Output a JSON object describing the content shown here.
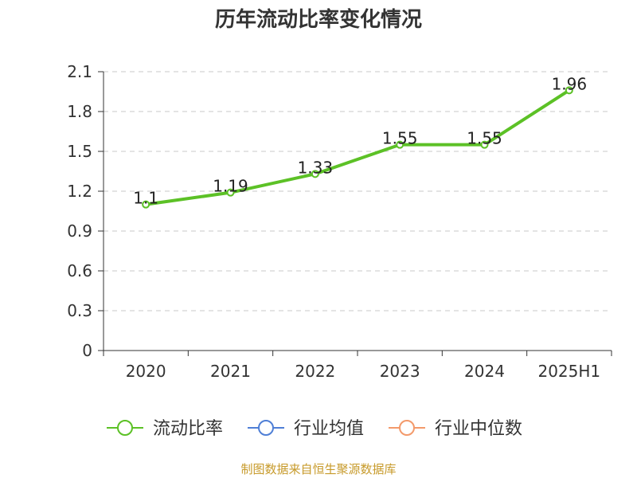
{
  "chart_data": {
    "type": "line",
    "title": "历年流动比率变化情况",
    "categories": [
      "2020",
      "2021",
      "2022",
      "2023",
      "2024",
      "2025H1"
    ],
    "series": [
      {
        "name": "流动比率",
        "values": [
          1.1,
          1.19,
          1.33,
          1.55,
          1.55,
          1.96
        ],
        "color": "#5cc126",
        "data_labels": [
          "1.1",
          "1.19",
          "1.33",
          "1.55",
          "1.55",
          "1.96"
        ]
      }
    ],
    "legend": [
      {
        "name": "流动比率",
        "color": "#5cc126"
      },
      {
        "name": "行业均值",
        "color": "#4f7fd6"
      },
      {
        "name": "行业中位数",
        "color": "#f39a6b"
      }
    ],
    "legend_position": "bottom",
    "ylim": [
      0,
      2.1
    ],
    "yticks": [
      "0",
      "0.3",
      "0.6",
      "0.9",
      "1.2",
      "1.5",
      "1.8",
      "2.1"
    ],
    "ytick_values": [
      0,
      0.3,
      0.6,
      0.9,
      1.2,
      1.5,
      1.8,
      2.1
    ],
    "grid": true,
    "xlabel": "",
    "ylabel": ""
  },
  "footer": {
    "source": "制图数据来自恒生聚源数据库",
    "source_color": "#c79a2a"
  }
}
